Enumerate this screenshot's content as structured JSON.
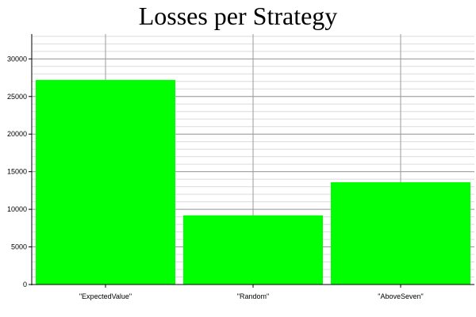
{
  "chart_data": {
    "type": "bar",
    "title": "Losses per Strategy",
    "xlabel": "",
    "ylabel": "",
    "categories": [
      "\"ExpectedValue\"",
      "\"Random\"",
      "\"AboveSeven\""
    ],
    "values": [
      27200,
      9200,
      13600
    ],
    "ylim": [
      0,
      33300
    ],
    "y_ticks": [
      0,
      5000,
      10000,
      15000,
      20000,
      25000,
      30000
    ],
    "y_minor_step": 1000,
    "grid": true,
    "legend": "none",
    "colors": {
      "bar": "#00ff00",
      "major_grid": "#9a9a9a",
      "minor_grid": "#dcdcdc",
      "axis": "#000000"
    }
  }
}
